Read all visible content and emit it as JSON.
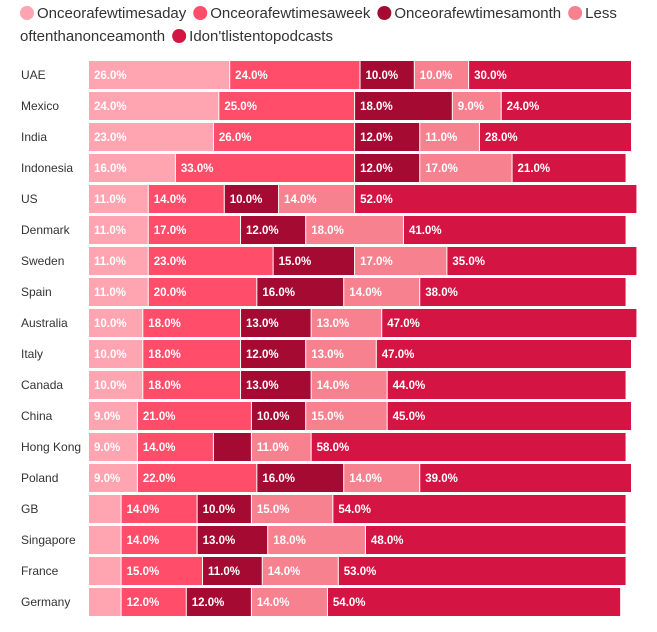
{
  "chart_data": {
    "type": "bar",
    "orientation": "horizontal",
    "stacked": true,
    "categories": [
      "UAE",
      "Mexico",
      "India",
      "Indonesia",
      "US",
      "Denmark",
      "Sweden",
      "Spain",
      "Australia",
      "Italy",
      "Canada",
      "China",
      "Hong Kong",
      "Poland",
      "GB",
      "Singapore",
      "France",
      "Germany"
    ],
    "series": [
      {
        "name": "Once or a few times a day",
        "color": "#ffa4b1",
        "values": [
          26,
          24,
          23,
          16,
          11,
          11,
          11,
          11,
          10,
          10,
          10,
          9,
          9,
          9,
          6,
          6,
          6,
          6
        ],
        "labels": [
          "26.0%",
          "24.0%",
          "23.0%",
          "16.0%",
          "11.0%",
          "11.0%",
          "11.0%",
          "11.0%",
          "10.0%",
          "10.0%",
          "10.0%",
          "9.0%",
          "9.0%",
          "9.0%",
          "",
          "",
          "",
          ""
        ]
      },
      {
        "name": "Once or a few times a week",
        "color": "#ff4d6a",
        "values": [
          24,
          25,
          26,
          33,
          14,
          17,
          23,
          20,
          18,
          18,
          18,
          21,
          14,
          22,
          14,
          14,
          15,
          12
        ],
        "labels": [
          "24.0%",
          "25.0%",
          "26.0%",
          "33.0%",
          "14.0%",
          "17.0%",
          "23.0%",
          "20.0%",
          "18.0%",
          "18.0%",
          "18.0%",
          "21.0%",
          "14.0%",
          "22.0%",
          "14.0%",
          "14.0%",
          "15.0%",
          "12.0%"
        ]
      },
      {
        "name": "Once or a few times a month",
        "color": "#a50a32",
        "values": [
          10,
          18,
          12,
          12,
          10,
          12,
          15,
          16,
          13,
          12,
          13,
          10,
          7,
          16,
          10,
          13,
          11,
          12
        ],
        "labels": [
          "10.0%",
          "18.0%",
          "12.0%",
          "12.0%",
          "10.0%",
          "12.0%",
          "15.0%",
          "16.0%",
          "13.0%",
          "12.0%",
          "13.0%",
          "10.0%",
          "",
          "16.0%",
          "10.0%",
          "13.0%",
          "11.0%",
          "12.0%"
        ]
      },
      {
        "name": "Less often than once a month",
        "color": "#f8818f",
        "values": [
          10,
          9,
          11,
          17,
          14,
          18,
          17,
          14,
          13,
          13,
          14,
          15,
          11,
          14,
          15,
          18,
          14,
          14
        ],
        "labels": [
          "10.0%",
          "9.0%",
          "11.0%",
          "17.0%",
          "14.0%",
          "18.0%",
          "17.0%",
          "14.0%",
          "13.0%",
          "13.0%",
          "14.0%",
          "15.0%",
          "11.0%",
          "14.0%",
          "15.0%",
          "18.0%",
          "14.0%",
          "14.0%"
        ]
      },
      {
        "name": "I don't listen to podcasts",
        "color": "#d41443",
        "values": [
          30,
          24,
          28,
          21,
          52,
          41,
          35,
          38,
          47,
          47,
          44,
          45,
          58,
          39,
          54,
          48,
          53,
          54
        ],
        "labels": [
          "30.0%",
          "24.0%",
          "28.0%",
          "21.0%",
          "52.0%",
          "41.0%",
          "35.0%",
          "38.0%",
          "47.0%",
          "47.0%",
          "44.0%",
          "45.0%",
          "58.0%",
          "39.0%",
          "54.0%",
          "48.0%",
          "53.0%",
          "54.0%"
        ]
      }
    ],
    "legend": "top-left",
    "grid": false,
    "xlabel": "",
    "ylabel": ""
  }
}
